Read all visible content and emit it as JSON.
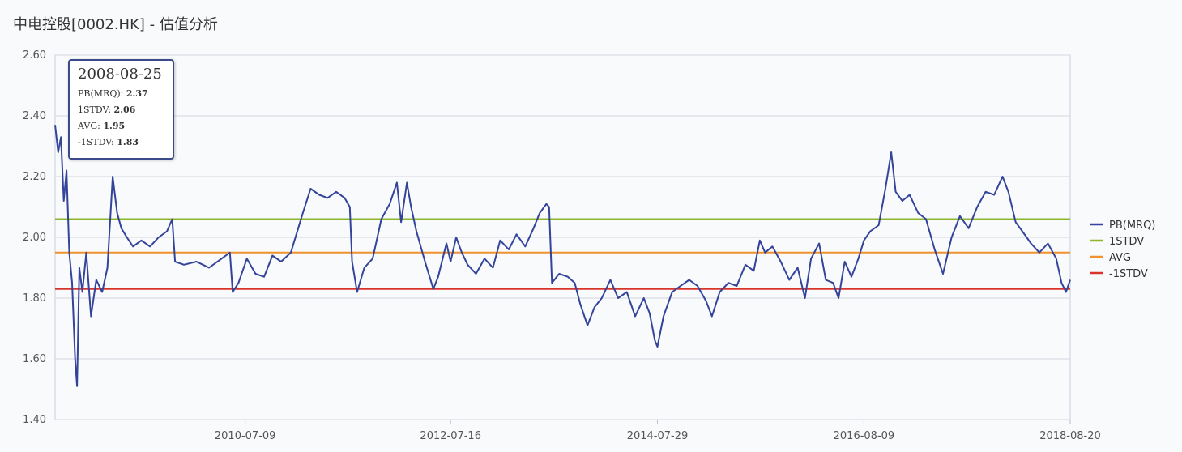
{
  "title": "中电控股[0002.HK] - 估值分析",
  "tooltip": {
    "date": "2008-08-25",
    "rows": [
      {
        "label": "PB(MRQ):",
        "value": "2.37"
      },
      {
        "label": "1STDV:",
        "value": "2.06"
      },
      {
        "label": "AVG:",
        "value": "1.95"
      },
      {
        "label": "-1STDV:",
        "value": "1.83"
      }
    ]
  },
  "chart_data": {
    "type": "line",
    "title": "中电控股[0002.HK] - 估值分析",
    "xlabel": "",
    "ylabel": "",
    "ylim": [
      1.4,
      2.6
    ],
    "y_ticks": [
      "1.40",
      "1.60",
      "1.80",
      "2.00",
      "2.20",
      "2.40",
      "2.60"
    ],
    "x_range": [
      "2008-08-25",
      "2018-08-20"
    ],
    "x_ticks": [
      "2010-07-09",
      "2012-07-16",
      "2014-07-29",
      "2016-08-09",
      "2018-08-20"
    ],
    "grid": true,
    "legend_position": "right",
    "series": [
      {
        "name": "PB(MRQ)",
        "color": "#33449a",
        "points": [
          [
            "2008-08-25",
            2.37
          ],
          [
            "2008-09-05",
            2.28
          ],
          [
            "2008-09-15",
            2.33
          ],
          [
            "2008-09-25",
            2.12
          ],
          [
            "2008-10-05",
            2.22
          ],
          [
            "2008-10-15",
            1.95
          ],
          [
            "2008-10-25",
            1.85
          ],
          [
            "2008-11-05",
            1.6
          ],
          [
            "2008-11-12",
            1.51
          ],
          [
            "2008-11-20",
            1.9
          ],
          [
            "2008-12-01",
            1.82
          ],
          [
            "2008-12-15",
            1.95
          ],
          [
            "2009-01-01",
            1.74
          ],
          [
            "2009-01-20",
            1.86
          ],
          [
            "2009-02-10",
            1.82
          ],
          [
            "2009-03-01",
            1.9
          ],
          [
            "2009-03-20",
            2.2
          ],
          [
            "2009-04-05",
            2.08
          ],
          [
            "2009-04-20",
            2.03
          ],
          [
            "2009-05-10",
            2.0
          ],
          [
            "2009-06-01",
            1.97
          ],
          [
            "2009-07-01",
            1.99
          ],
          [
            "2009-08-01",
            1.97
          ],
          [
            "2009-09-01",
            2.0
          ],
          [
            "2009-10-01",
            2.02
          ],
          [
            "2009-10-20",
            2.06
          ],
          [
            "2009-10-30",
            1.92
          ],
          [
            "2009-12-01",
            1.91
          ],
          [
            "2010-01-15",
            1.92
          ],
          [
            "2010-03-01",
            1.9
          ],
          [
            "2010-04-15",
            1.93
          ],
          [
            "2010-05-15",
            1.95
          ],
          [
            "2010-05-25",
            1.82
          ],
          [
            "2010-06-15",
            1.85
          ],
          [
            "2010-07-15",
            1.93
          ],
          [
            "2010-08-15",
            1.88
          ],
          [
            "2010-09-15",
            1.87
          ],
          [
            "2010-10-15",
            1.94
          ],
          [
            "2010-11-15",
            1.92
          ],
          [
            "2010-12-20",
            1.95
          ],
          [
            "2011-02-01",
            2.08
          ],
          [
            "2011-03-01",
            2.16
          ],
          [
            "2011-04-01",
            2.14
          ],
          [
            "2011-05-01",
            2.13
          ],
          [
            "2011-06-01",
            2.15
          ],
          [
            "2011-07-01",
            2.13
          ],
          [
            "2011-07-20",
            2.1
          ],
          [
            "2011-07-28",
            1.92
          ],
          [
            "2011-08-15",
            1.82
          ],
          [
            "2011-09-10",
            1.9
          ],
          [
            "2011-10-10",
            1.93
          ],
          [
            "2011-11-10",
            2.06
          ],
          [
            "2011-12-10",
            2.11
          ],
          [
            "2012-01-05",
            2.18
          ],
          [
            "2012-01-20",
            2.05
          ],
          [
            "2012-02-10",
            2.18
          ],
          [
            "2012-02-25",
            2.1
          ],
          [
            "2012-03-15",
            2.02
          ],
          [
            "2012-04-15",
            1.92
          ],
          [
            "2012-05-15",
            1.83
          ],
          [
            "2012-06-01",
            1.87
          ],
          [
            "2012-07-01",
            1.98
          ],
          [
            "2012-07-16",
            1.92
          ],
          [
            "2012-08-05",
            2.0
          ],
          [
            "2012-08-25",
            1.95
          ],
          [
            "2012-09-15",
            1.91
          ],
          [
            "2012-10-15",
            1.88
          ],
          [
            "2012-11-15",
            1.93
          ],
          [
            "2012-12-15",
            1.9
          ],
          [
            "2013-01-10",
            1.99
          ],
          [
            "2013-02-10",
            1.96
          ],
          [
            "2013-03-10",
            2.01
          ],
          [
            "2013-04-10",
            1.97
          ],
          [
            "2013-05-10",
            2.03
          ],
          [
            "2013-06-01",
            2.08
          ],
          [
            "2013-06-25",
            2.11
          ],
          [
            "2013-07-05",
            2.1
          ],
          [
            "2013-07-15",
            1.85
          ],
          [
            "2013-08-10",
            1.88
          ],
          [
            "2013-09-10",
            1.87
          ],
          [
            "2013-10-05",
            1.85
          ],
          [
            "2013-10-25",
            1.78
          ],
          [
            "2013-11-20",
            1.71
          ],
          [
            "2013-12-15",
            1.77
          ],
          [
            "2014-01-10",
            1.8
          ],
          [
            "2014-02-10",
            1.86
          ],
          [
            "2014-03-10",
            1.8
          ],
          [
            "2014-04-10",
            1.82
          ],
          [
            "2014-05-10",
            1.74
          ],
          [
            "2014-06-10",
            1.8
          ],
          [
            "2014-07-01",
            1.75
          ],
          [
            "2014-07-20",
            1.66
          ],
          [
            "2014-07-29",
            1.64
          ],
          [
            "2014-08-20",
            1.74
          ],
          [
            "2014-09-20",
            1.82
          ],
          [
            "2014-10-20",
            1.84
          ],
          [
            "2014-11-20",
            1.86
          ],
          [
            "2014-12-20",
            1.84
          ],
          [
            "2015-01-20",
            1.79
          ],
          [
            "2015-02-10",
            1.74
          ],
          [
            "2015-03-10",
            1.82
          ],
          [
            "2015-04-10",
            1.85
          ],
          [
            "2015-05-10",
            1.84
          ],
          [
            "2015-06-10",
            1.91
          ],
          [
            "2015-07-10",
            1.89
          ],
          [
            "2015-08-01",
            1.99
          ],
          [
            "2015-08-20",
            1.95
          ],
          [
            "2015-09-15",
            1.97
          ],
          [
            "2015-10-15",
            1.92
          ],
          [
            "2015-11-15",
            1.86
          ],
          [
            "2015-12-15",
            1.9
          ],
          [
            "2016-01-10",
            1.8
          ],
          [
            "2016-02-01",
            1.93
          ],
          [
            "2016-03-01",
            1.98
          ],
          [
            "2016-03-25",
            1.86
          ],
          [
            "2016-04-20",
            1.85
          ],
          [
            "2016-05-10",
            1.8
          ],
          [
            "2016-06-01",
            1.92
          ],
          [
            "2016-06-25",
            1.87
          ],
          [
            "2016-07-20",
            1.93
          ],
          [
            "2016-08-09",
            1.99
          ],
          [
            "2016-09-01",
            2.02
          ],
          [
            "2016-10-01",
            2.04
          ],
          [
            "2016-10-25",
            2.16
          ],
          [
            "2016-11-15",
            2.28
          ],
          [
            "2016-12-01",
            2.15
          ],
          [
            "2016-12-25",
            2.12
          ],
          [
            "2017-01-20",
            2.14
          ],
          [
            "2017-02-20",
            2.08
          ],
          [
            "2017-03-20",
            2.06
          ],
          [
            "2017-04-20",
            1.96
          ],
          [
            "2017-05-20",
            1.88
          ],
          [
            "2017-06-20",
            2.0
          ],
          [
            "2017-07-20",
            2.07
          ],
          [
            "2017-08-20",
            2.03
          ],
          [
            "2017-09-20",
            2.1
          ],
          [
            "2017-10-20",
            2.15
          ],
          [
            "2017-11-20",
            2.14
          ],
          [
            "2017-12-20",
            2.2
          ],
          [
            "2018-01-10",
            2.15
          ],
          [
            "2018-02-05",
            2.05
          ],
          [
            "2018-03-01",
            2.02
          ],
          [
            "2018-04-01",
            1.98
          ],
          [
            "2018-05-01",
            1.95
          ],
          [
            "2018-06-01",
            1.98
          ],
          [
            "2018-07-01",
            1.93
          ],
          [
            "2018-07-20",
            1.85
          ],
          [
            "2018-08-05",
            1.82
          ],
          [
            "2018-08-20",
            1.86
          ]
        ]
      },
      {
        "name": "1STDV",
        "color": "#8db52d",
        "value": 2.06
      },
      {
        "name": "AVG",
        "color": "#f0922e",
        "value": 1.95
      },
      {
        "name": "-1STDV",
        "color": "#d9352b",
        "value": 1.83
      }
    ]
  }
}
